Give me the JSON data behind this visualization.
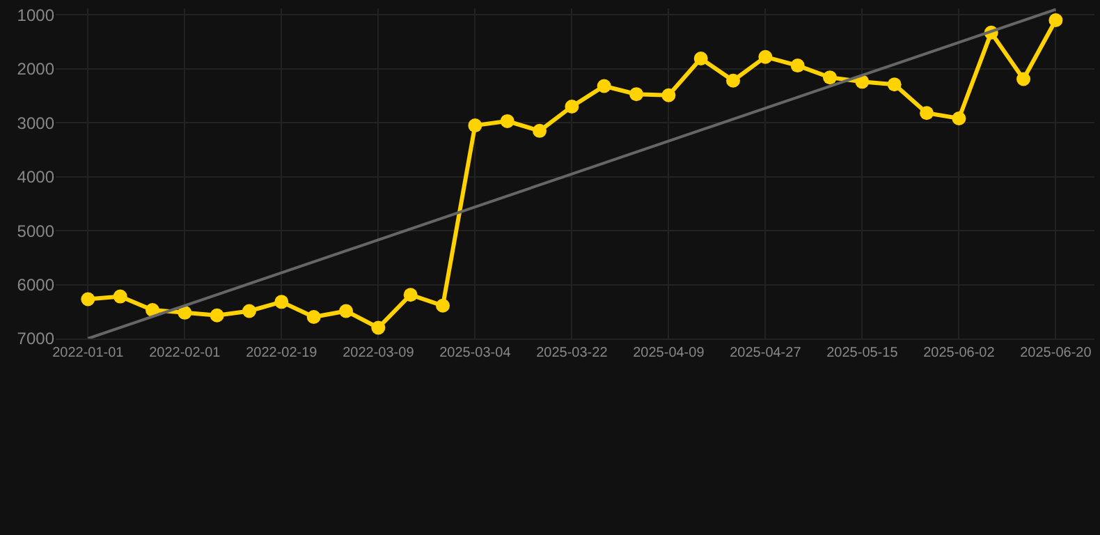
{
  "chart_data": {
    "type": "line",
    "categories": [
      "2022-01-01",
      null,
      null,
      "2022-02-01",
      null,
      null,
      "2022-02-19",
      null,
      null,
      "2022-03-09",
      null,
      null,
      "2025-03-04",
      null,
      null,
      "2025-03-22",
      null,
      null,
      "2025-04-09",
      null,
      null,
      "2025-04-27",
      null,
      null,
      "2025-05-15",
      null,
      null,
      "2025-06-02",
      null,
      null,
      "2025-06-20"
    ],
    "series": [
      {
        "color": "#ffd200",
        "marker": "circle",
        "values": [
          6270,
          6220,
          6470,
          6520,
          6570,
          6490,
          6320,
          6600,
          6490,
          6800,
          6190,
          6390,
          3050,
          2970,
          3150,
          2700,
          2320,
          2470,
          2490,
          1810,
          2220,
          1780,
          1940,
          2160,
          2240,
          2290,
          2820,
          2920,
          1330,
          2190,
          1100
        ]
      },
      {
        "type": "line",
        "color": "#666666",
        "marker": "none",
        "values": [
          7000,
          null,
          null,
          null,
          null,
          null,
          null,
          null,
          null,
          null,
          null,
          null,
          null,
          null,
          null,
          null,
          null,
          null,
          null,
          null,
          null,
          null,
          null,
          null,
          null,
          null,
          null,
          null,
          null,
          null,
          900
        ]
      }
    ],
    "ylim": [
      7000,
      880
    ],
    "yticks": [
      1000,
      2000,
      3000,
      4000,
      5000,
      6000,
      7000
    ],
    "grid": true
  }
}
